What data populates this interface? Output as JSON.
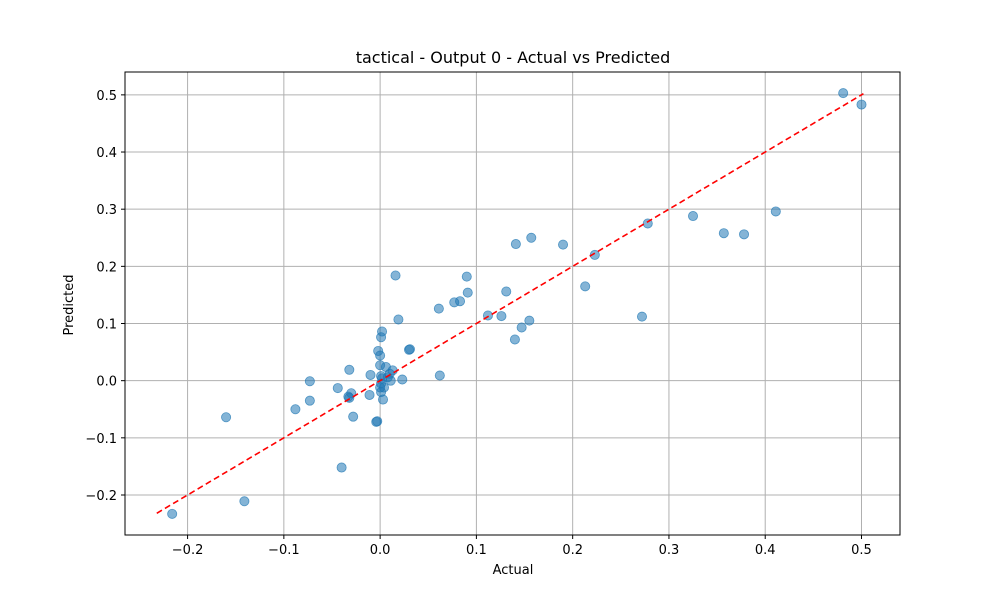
{
  "chart_data": {
    "type": "scatter",
    "title": "tactical - Output 0 - Actual vs Predicted",
    "xlabel": "Actual",
    "ylabel": "Predicted",
    "xlim": [
      -0.265,
      0.54
    ],
    "ylim": [
      -0.27,
      0.54
    ],
    "xticks": [
      -0.2,
      -0.1,
      0.0,
      0.1,
      0.2,
      0.3,
      0.4,
      0.5
    ],
    "yticks": [
      -0.2,
      -0.1,
      0.0,
      0.1,
      0.2,
      0.3,
      0.4,
      0.5
    ],
    "xtick_labels": [
      "−0.2",
      "−0.1",
      "0.0",
      "0.1",
      "0.2",
      "0.3",
      "0.4",
      "0.5"
    ],
    "ytick_labels": [
      "−0.2",
      "−0.1",
      "0.0",
      "0.1",
      "0.2",
      "0.3",
      "0.4",
      "0.5"
    ],
    "grid": true,
    "point_color": "#1f77b4",
    "line_color": "#ff0000",
    "reference_line": {
      "x": [
        -0.232,
        0.502
      ],
      "y": [
        -0.232,
        0.502
      ],
      "style": "dashed"
    },
    "points": [
      [
        0.481,
        0.503
      ],
      [
        0.5,
        0.483
      ],
      [
        0.411,
        0.296
      ],
      [
        0.378,
        0.256
      ],
      [
        0.357,
        0.258
      ],
      [
        0.325,
        0.288
      ],
      [
        0.278,
        0.275
      ],
      [
        0.272,
        0.112
      ],
      [
        0.223,
        0.22
      ],
      [
        0.213,
        0.165
      ],
      [
        0.19,
        0.238
      ],
      [
        0.157,
        0.25
      ],
      [
        0.155,
        0.105
      ],
      [
        0.147,
        0.093
      ],
      [
        0.141,
        0.239
      ],
      [
        0.14,
        0.072
      ],
      [
        0.131,
        0.156
      ],
      [
        0.126,
        0.113
      ],
      [
        0.112,
        0.114
      ],
      [
        0.091,
        0.154
      ],
      [
        0.09,
        0.182
      ],
      [
        0.083,
        0.139
      ],
      [
        0.077,
        0.137
      ],
      [
        0.062,
        0.009
      ],
      [
        0.061,
        0.126
      ],
      [
        0.031,
        0.055
      ],
      [
        0.03,
        0.054
      ],
      [
        0.023,
        0.002
      ],
      [
        0.019,
        0.107
      ],
      [
        0.016,
        0.184
      ],
      [
        0.013,
        0.018
      ],
      [
        0.011,
        0.0
      ],
      [
        0.01,
        0.012
      ],
      [
        0.008,
        0.006
      ],
      [
        0.006,
        0.024
      ],
      [
        0.004,
        -0.012
      ],
      [
        0.003,
        -0.033
      ],
      [
        0.002,
        0.086
      ],
      [
        0.001,
        0.076
      ],
      [
        0.0,
        0.044
      ],
      [
        0.0,
        0.027
      ],
      [
        0.001,
        0.008
      ],
      [
        0.002,
        0.004
      ],
      [
        0.001,
        -0.005
      ],
      [
        0.0,
        -0.012
      ],
      [
        0.001,
        -0.02
      ],
      [
        -0.002,
        0.052
      ],
      [
        -0.003,
        -0.071
      ],
      [
        -0.004,
        -0.072
      ],
      [
        -0.01,
        0.01
      ],
      [
        -0.011,
        -0.025
      ],
      [
        -0.028,
        -0.063
      ],
      [
        -0.03,
        -0.022
      ],
      [
        -0.032,
        -0.03
      ],
      [
        -0.033,
        -0.028
      ],
      [
        -0.032,
        0.019
      ],
      [
        -0.044,
        -0.013
      ],
      [
        -0.04,
        -0.152
      ],
      [
        -0.073,
        -0.035
      ],
      [
        -0.073,
        -0.001
      ],
      [
        -0.088,
        -0.05
      ],
      [
        -0.141,
        -0.211
      ],
      [
        -0.16,
        -0.064
      ],
      [
        -0.216,
        -0.233
      ]
    ]
  }
}
